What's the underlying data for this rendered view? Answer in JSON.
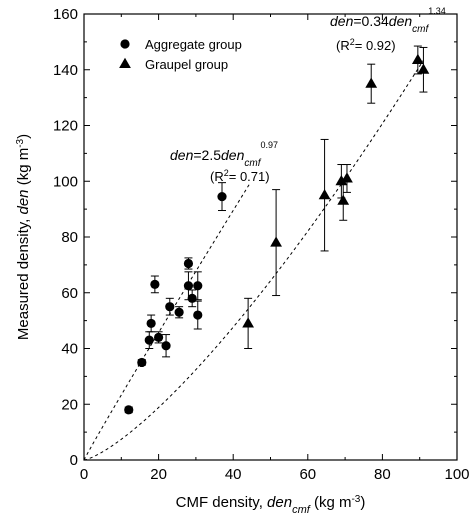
{
  "chart_data": {
    "type": "scatter",
    "xlabel": {
      "main": "CMF density, ",
      "var": "den",
      "sub": "cmf",
      "unit_pre": " (kg m",
      "unit_sup": "-3",
      "unit_post": ")"
    },
    "ylabel": {
      "main": "Measured density, ",
      "var": "den",
      "unit_pre": " (kg m",
      "unit_sup": "-3",
      "unit_post": ")"
    },
    "xlim": [
      0,
      100
    ],
    "ylim": [
      0,
      160
    ],
    "xticks": [
      0,
      20,
      40,
      60,
      80,
      100
    ],
    "yticks": [
      0,
      20,
      40,
      60,
      80,
      100,
      120,
      140,
      160
    ],
    "grid": false,
    "legend_position": "top-left",
    "series": [
      {
        "name": "Aggregate group",
        "marker": "circle",
        "points": [
          {
            "x": 12,
            "y": 18,
            "err": 1
          },
          {
            "x": 15.5,
            "y": 35,
            "err": 1
          },
          {
            "x": 17.5,
            "y": 43,
            "err": 3
          },
          {
            "x": 18,
            "y": 49,
            "err": 3
          },
          {
            "x": 19,
            "y": 63,
            "err": 3
          },
          {
            "x": 20,
            "y": 44,
            "err": 2
          },
          {
            "x": 22,
            "y": 41,
            "err": 4
          },
          {
            "x": 23,
            "y": 55,
            "err": 3
          },
          {
            "x": 25.5,
            "y": 53,
            "err": 2
          },
          {
            "x": 28,
            "y": 62.5,
            "err": 5
          },
          {
            "x": 28,
            "y": 70.5,
            "err": 2
          },
          {
            "x": 29,
            "y": 58,
            "err": 3
          },
          {
            "x": 30.5,
            "y": 62.5,
            "err": 5
          },
          {
            "x": 30.5,
            "y": 52,
            "err": 5
          },
          {
            "x": 37,
            "y": 94.5,
            "err": 5
          }
        ]
      },
      {
        "name": "Graupel group",
        "marker": "triangle",
        "points": [
          {
            "x": 44,
            "y": 49,
            "err": 9
          },
          {
            "x": 51.5,
            "y": 78,
            "err": 19
          },
          {
            "x": 64.5,
            "y": 95,
            "err": 20
          },
          {
            "x": 69,
            "y": 100,
            "err": 6
          },
          {
            "x": 69.5,
            "y": 93,
            "err": 7
          },
          {
            "x": 70.5,
            "y": 101,
            "err": 5
          },
          {
            "x": 77,
            "y": 135,
            "err": 7
          },
          {
            "x": 89.5,
            "y": 143.5,
            "err": 5
          },
          {
            "x": 91,
            "y": 140,
            "err": 8
          }
        ]
      }
    ],
    "fits": [
      {
        "coef": 2.5,
        "exp": 0.97,
        "x_end": 44.5,
        "eq_lhs": "den",
        "eq_mid": "=2.5",
        "eq_var": "den",
        "eq_sub": "cmf",
        "eq_exp": "0.97",
        "r2_pre": "(R",
        "r2_sup": "2",
        "r2_post": "= 0.71)"
      },
      {
        "coef": 0.34,
        "exp": 1.34,
        "x_end": 91,
        "eq_lhs": "den",
        "eq_mid": "=0.34",
        "eq_var": "den",
        "eq_sub": "cmf",
        "eq_exp": "1.34",
        "r2_pre": "(R",
        "r2_sup": "2",
        "r2_post": "= 0.92)"
      }
    ]
  }
}
